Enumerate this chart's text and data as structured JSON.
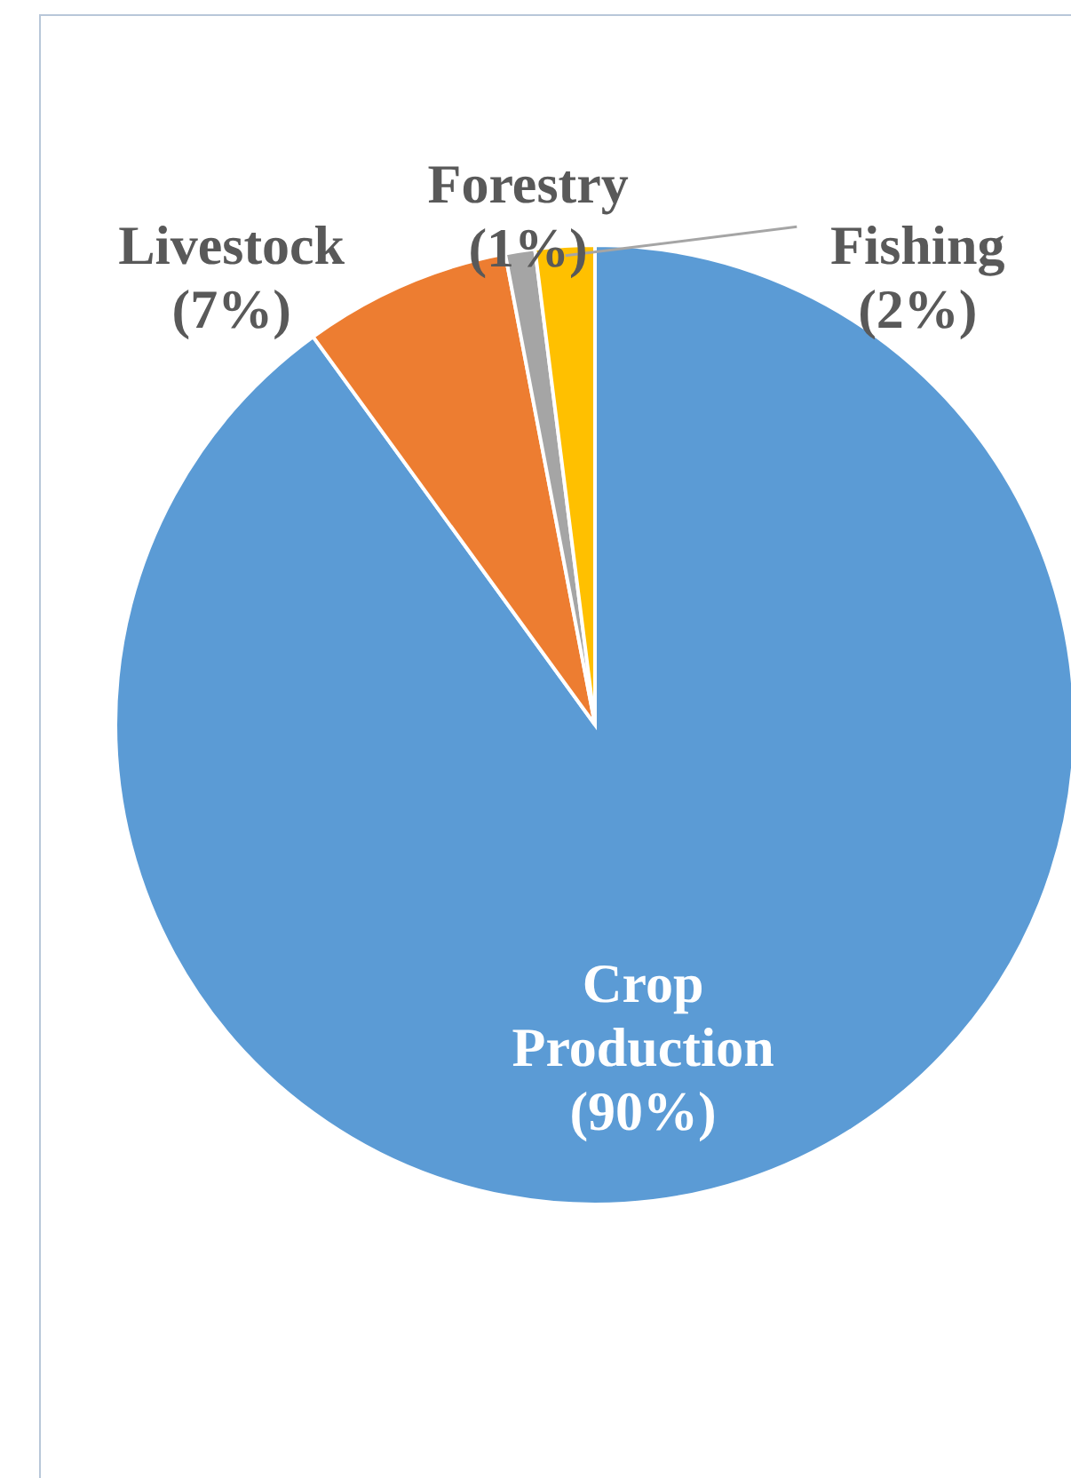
{
  "chart_data": {
    "type": "pie",
    "categories": [
      "Crop Production",
      "Livestock",
      "Forestry",
      "Fishing"
    ],
    "values": [
      90,
      7,
      1,
      2
    ],
    "colors": [
      "#5b9bd5",
      "#ed7d31",
      "#a5a5a5",
      "#ffc000"
    ],
    "value_labels": [
      "(90%)",
      "(7%)",
      "(1%)",
      "(2%)"
    ]
  }
}
